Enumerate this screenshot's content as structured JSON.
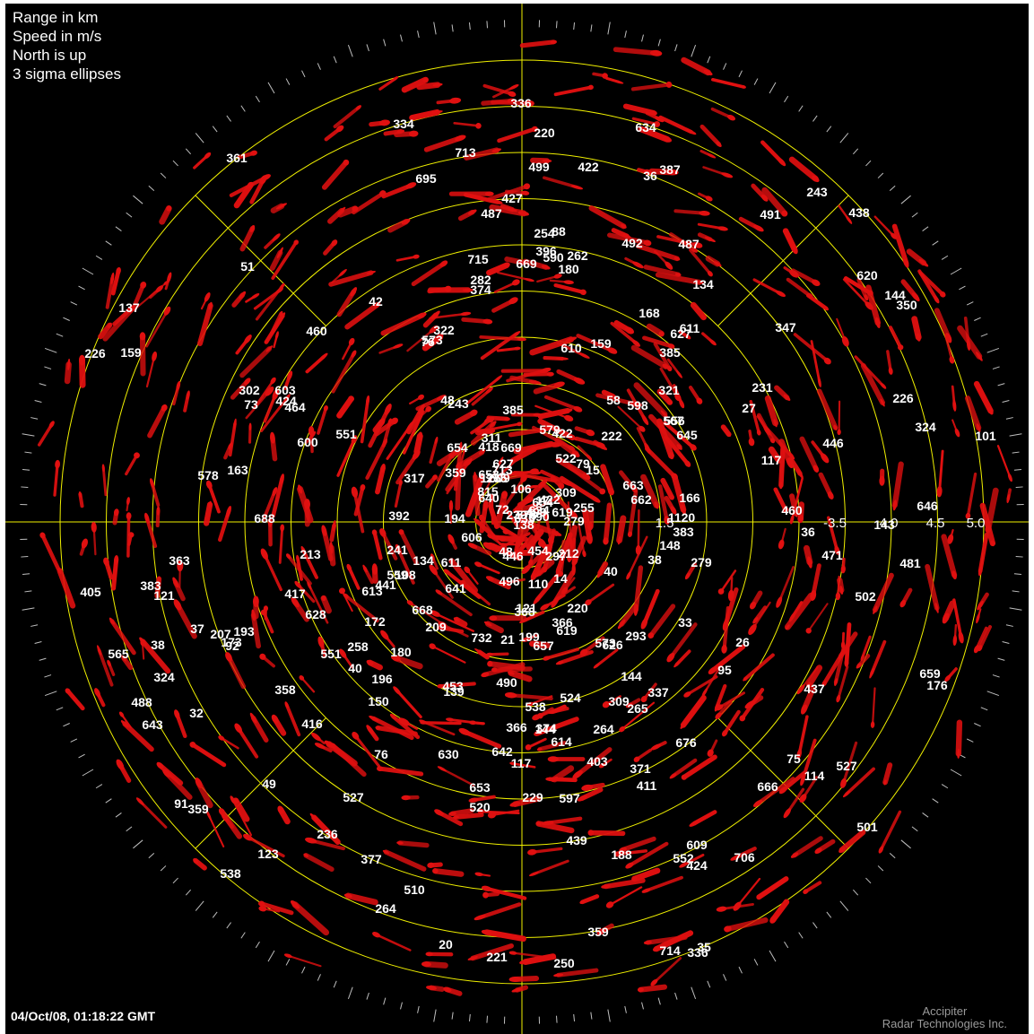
{
  "legend": {
    "range_units": "Range in km",
    "speed_units": "Speed in m/s",
    "orientation": "North is up",
    "ellipses": "3 sigma ellipses"
  },
  "timestamp": "04/Oct/08,  01:18:22 GMT",
  "branding": {
    "line1": "Accipiter",
    "line2": "Radar Technologies Inc."
  },
  "colors": {
    "background": "#000000",
    "grid": "#f0f000",
    "track": "#e01010",
    "label": "#ffffff"
  },
  "range_rings_km": [
    0.5,
    1.0,
    1.5,
    2.0,
    2.5,
    3.0,
    3.5,
    4.0,
    4.5,
    5.0
  ],
  "range_labels": [
    "1.5",
    "-3.5",
    "4.0",
    "4.5",
    "5.0"
  ],
  "track_ids": [
    "626",
    "311",
    "262",
    "134",
    "427",
    "590",
    "714",
    "405",
    "676",
    "172",
    "496",
    "598",
    "481",
    "715",
    "487",
    "264",
    "275",
    "79",
    "75",
    "597",
    "403",
    "603",
    "713",
    "37",
    "180",
    "108",
    "538",
    "317",
    "669",
    "492",
    "520",
    "117",
    "600",
    "422",
    "324",
    "609",
    "168",
    "619",
    "688",
    "573",
    "176",
    "73",
    "76",
    "628",
    "114",
    "634",
    "91",
    "194",
    "732",
    "815",
    "713",
    "322",
    "173",
    "213",
    "417",
    "123",
    "491",
    "643",
    "95",
    "437",
    "196",
    "359",
    "166",
    "309",
    "464",
    "385",
    "487",
    "499",
    "609",
    "14",
    "383",
    "88",
    "502",
    "551",
    "101",
    "438",
    "387",
    "180",
    "611",
    "106",
    "366",
    "254",
    "706",
    "627",
    "163",
    "695",
    "193",
    "366",
    "72",
    "666",
    "76",
    "578",
    "471",
    "524",
    "144",
    "619",
    "620",
    "527",
    "522",
    "236",
    "199",
    "293",
    "92",
    "653",
    "556",
    "125",
    "222",
    "117",
    "579",
    "297",
    "350",
    "460",
    "337",
    "255",
    "538",
    "212",
    "241",
    "17",
    "243",
    "226",
    "499",
    "613",
    "347",
    "374",
    "396",
    "159",
    "630",
    "453",
    "15",
    "321",
    "139",
    "336",
    "654",
    "565",
    "418",
    "488",
    "646",
    "424",
    "188",
    "611",
    "610",
    "1120",
    "309",
    "40",
    "48",
    "422",
    "282",
    "38",
    "590",
    "209",
    "573",
    "207",
    "220",
    "567",
    "392",
    "635",
    "48",
    "642",
    "361",
    "416",
    "385",
    "36",
    "627",
    "36",
    "634",
    "641",
    "110",
    "138",
    "510",
    "490",
    "58",
    "659",
    "363",
    "383",
    "302",
    "374",
    "35",
    "439",
    "148",
    "377",
    "20",
    "657",
    "220",
    "40",
    "38",
    "614",
    "143",
    "359",
    "230",
    "578",
    "446",
    "606",
    "159",
    "358",
    "121",
    "144",
    "264",
    "663",
    "653",
    "258",
    "150",
    "359",
    "121",
    "668",
    "454",
    "221",
    "324",
    "49",
    "336",
    "527",
    "243",
    "411",
    "21",
    "654",
    "144",
    "250",
    "32",
    "26",
    "51",
    "559",
    "551",
    "424",
    "460",
    "368",
    "371",
    "42",
    "640",
    "441",
    "501",
    "669",
    "27",
    "662",
    "422",
    "645",
    "137",
    "446",
    "334",
    "265",
    "134",
    "226",
    "279",
    "279",
    "33",
    "231",
    "552",
    "229"
  ]
}
